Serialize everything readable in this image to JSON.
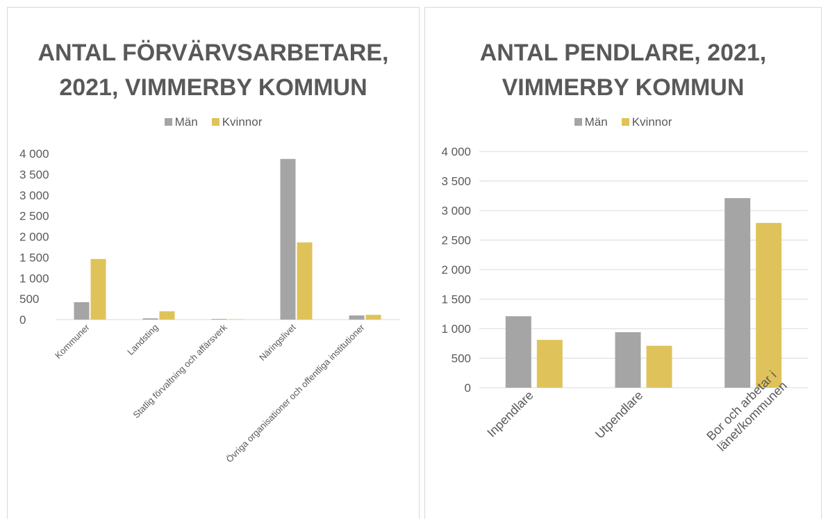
{
  "chart_data": [
    {
      "type": "bar",
      "title": "ANTAL FÖRVÄRVSARBETARE, 2021, VIMMERBY KOMMUN",
      "categories": [
        "Kommuner",
        "Landsting",
        "Statlig förvaltning och affärsverk",
        "Näringslivet",
        "Övriga organisationer och offentliga institutioner"
      ],
      "series": [
        {
          "name": "Män",
          "color": "#a5a5a5",
          "values": [
            420,
            30,
            15,
            3870,
            100
          ]
        },
        {
          "name": "Kvinnor",
          "color": "#dfc35a",
          "values": [
            1460,
            200,
            10,
            1860,
            115
          ]
        }
      ],
      "ylim": [
        0,
        4000
      ],
      "yticks": [
        0,
        500,
        {
          "value": 1000,
          "label": "1 000"
        },
        {
          "value": 1500,
          "label": "1 500"
        },
        {
          "value": 2000,
          "label": "2 000"
        },
        {
          "value": 2500,
          "label": "2 500"
        },
        {
          "value": 3000,
          "label": "3 000"
        },
        {
          "value": 3500,
          "label": "3 500"
        },
        {
          "value": 4000,
          "label": "4 000"
        }
      ],
      "grid": false,
      "legend": "top"
    },
    {
      "type": "bar",
      "title": "ANTAL PENDLARE, 2021, VIMMERBY KOMMUN",
      "categories": [
        "Inpendlare",
        "Utpendlare",
        "Bor och arbetar i länet/kommunen"
      ],
      "series": [
        {
          "name": "Män",
          "color": "#a5a5a5",
          "values": [
            1210,
            940,
            3210
          ]
        },
        {
          "name": "Kvinnor",
          "color": "#dfc35a",
          "values": [
            810,
            710,
            2790
          ]
        }
      ],
      "ylim": [
        0,
        4000
      ],
      "yticks": [
        0,
        500,
        {
          "value": 1000,
          "label": "1 000"
        },
        {
          "value": 1500,
          "label": "1 500"
        },
        {
          "value": 2000,
          "label": "2 000"
        },
        {
          "value": 2500,
          "label": "2 500"
        },
        {
          "value": 3000,
          "label": "3 000"
        },
        {
          "value": 3500,
          "label": "3 500"
        },
        {
          "value": 4000,
          "label": "4 000"
        }
      ],
      "grid": true,
      "legend": "top"
    }
  ]
}
